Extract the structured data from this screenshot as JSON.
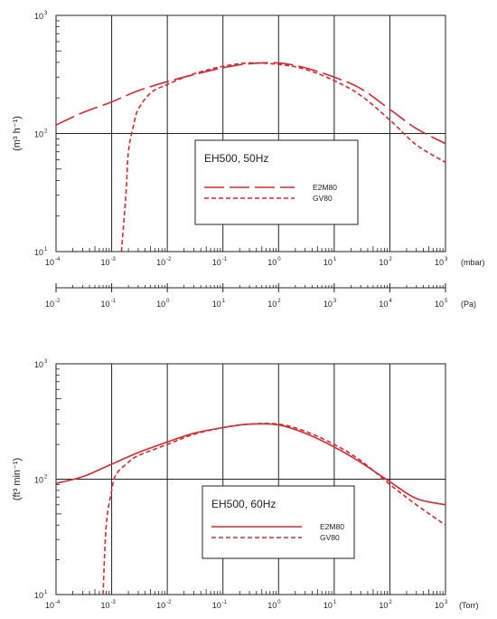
{
  "charts": [
    {
      "type": "line",
      "ylabel": "(m³ h⁻¹)",
      "xunit": "(mbar)",
      "xlog": true,
      "ylog": true,
      "xlim": [
        0.0001,
        1000
      ],
      "ylim": [
        10,
        1000
      ],
      "x_ticks": [
        "-4",
        "-3",
        "-2",
        "-1",
        "0",
        "1",
        "2",
        "3"
      ],
      "y_ticks": [
        "1",
        "2",
        "3"
      ],
      "secondary_axis": {
        "unit": "(Pa)",
        "ticks": [
          "-2",
          "-1",
          "0",
          "1",
          "2",
          "3",
          "4",
          "5"
        ]
      },
      "legend": {
        "title": "EH500, 50Hz",
        "placement": "center",
        "entries": [
          "E2M80",
          "GV80"
        ]
      },
      "series": [
        {
          "name": "E2M80",
          "style": "long-dash",
          "x": [
            0.0001,
            0.0003,
            0.001,
            0.003,
            0.01,
            0.03,
            0.1,
            0.3,
            1,
            3,
            10,
            30,
            100,
            300,
            1000
          ],
          "y": [
            118,
            150,
            185,
            230,
            275,
            315,
            360,
            390,
            395,
            360,
            300,
            240,
            160,
            110,
            82
          ]
        },
        {
          "name": "GV80",
          "style": "short-dash",
          "x": [
            0.0015,
            0.0018,
            0.002,
            0.0025,
            0.003,
            0.005,
            0.01,
            0.03,
            0.1,
            0.3,
            1,
            3,
            10,
            30,
            100,
            300,
            1000
          ],
          "y": [
            10,
            30,
            70,
            120,
            160,
            220,
            260,
            320,
            370,
            395,
            385,
            350,
            280,
            210,
            130,
            80,
            57
          ]
        }
      ]
    },
    {
      "type": "line",
      "ylabel": "(ft³ min⁻¹)",
      "xunit": "(Torr)",
      "xlog": true,
      "ylog": true,
      "xlim": [
        0.0001,
        1000
      ],
      "ylim": [
        10,
        1000
      ],
      "x_ticks": [
        "-4",
        "-3",
        "-2",
        "-1",
        "0",
        "1",
        "2",
        "3"
      ],
      "y_ticks": [
        "1",
        "2",
        "3"
      ],
      "legend": {
        "title": "EH500, 60Hz",
        "placement": "bottom-center",
        "entries": [
          "E2M80",
          "GV80"
        ]
      },
      "series": [
        {
          "name": "E2M80",
          "style": "solid",
          "x": [
            0.0001,
            0.0003,
            0.001,
            0.003,
            0.01,
            0.03,
            0.1,
            0.3,
            1,
            3,
            10,
            30,
            100,
            300,
            1000
          ],
          "y": [
            92,
            105,
            135,
            170,
            210,
            250,
            280,
            300,
            295,
            250,
            190,
            140,
            95,
            68,
            60
          ]
        },
        {
          "name": "GV80",
          "style": "short-dash",
          "x": [
            0.0007,
            0.0008,
            0.001,
            0.0012,
            0.002,
            0.003,
            0.01,
            0.03,
            0.1,
            0.3,
            1,
            3,
            10,
            30,
            100,
            300,
            1000
          ],
          "y": [
            10,
            40,
            80,
            110,
            140,
            160,
            200,
            245,
            280,
            300,
            300,
            260,
            200,
            145,
            90,
            60,
            40
          ]
        }
      ]
    }
  ],
  "colors": {
    "curve": "#d42a32",
    "axis": "#222222"
  }
}
